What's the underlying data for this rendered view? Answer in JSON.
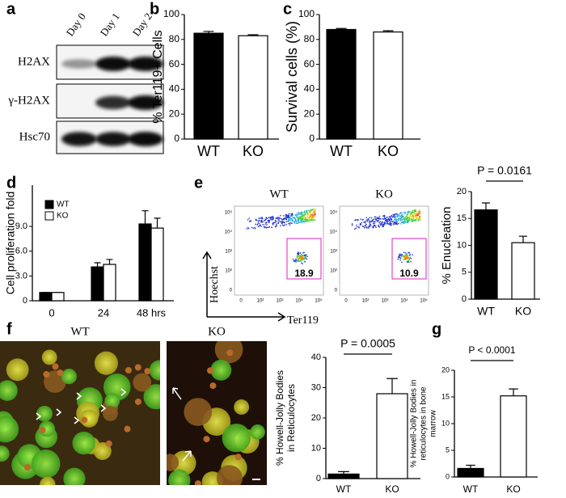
{
  "panel_labels": [
    "a",
    "b",
    "c",
    "d",
    "e",
    "f",
    "g"
  ],
  "blot": {
    "lanes": [
      "Day 0",
      "Day 1",
      "Day 2"
    ],
    "rows": [
      "H2AX",
      "γ-H2AX",
      "Hsc70"
    ]
  },
  "flow": {
    "plots": [
      {
        "label": "WT",
        "gate": 18.9
      },
      {
        "label": "KO",
        "gate": 10.9
      }
    ],
    "y_label": "Hoechst",
    "x_label": "Ter119",
    "x_ticks": [
      "0",
      "10²",
      "10³",
      "10⁴",
      "10⁵"
    ],
    "y_ticks": [
      "0",
      "10²",
      "10³",
      "10⁴",
      "10⁵"
    ]
  },
  "micrographs": {
    "labels": [
      "WT",
      "KO"
    ]
  },
  "chart_data": [
    {
      "type": "bar",
      "y_label": [
        "% Ter119+ Cells"
      ],
      "categories": [
        "WT",
        "KO"
      ],
      "values": [
        85,
        83
      ],
      "errors": [
        1.5,
        0.8
      ],
      "colors": [
        "#000000",
        "#ffffff"
      ],
      "ylim": [
        0,
        100
      ],
      "yticks": [
        0,
        20,
        40,
        60,
        80,
        100
      ]
    },
    {
      "type": "bar",
      "y_label": [
        "Survival cells (%)"
      ],
      "categories": [
        "WT",
        "KO"
      ],
      "values": [
        88,
        86
      ],
      "errors": [
        0.8,
        1.0
      ],
      "colors": [
        "#000000",
        "#ffffff"
      ],
      "ylim": [
        0,
        100
      ],
      "yticks": [
        0,
        20,
        40,
        60,
        80,
        100
      ]
    },
    {
      "type": "grouped_bar",
      "y_label": [
        "Cell proliferation fold"
      ],
      "categories": [
        "0",
        "24",
        "48 hrs"
      ],
      "series": [
        {
          "name": "WT",
          "color": "#000000",
          "values": [
            1.0,
            4.1,
            9.3
          ],
          "errors": [
            0,
            0.5,
            1.6
          ]
        },
        {
          "name": "KO",
          "color": "#ffffff",
          "values": [
            1.0,
            4.4,
            8.8
          ],
          "errors": [
            0,
            0.6,
            1.2
          ]
        }
      ],
      "legend": "upper left",
      "ylim": [
        0,
        14
      ],
      "yticks": [
        0,
        {
          "value": 3,
          "label": "3.0"
        },
        {
          "value": 6,
          "label": "6.0"
        },
        {
          "value": 9,
          "label": "9.0"
        }
      ]
    },
    {
      "type": "bar",
      "y_label": [
        "% Enucleation"
      ],
      "categories": [
        "WT",
        "KO"
      ],
      "values": [
        16.6,
        10.5
      ],
      "errors": [
        1.3,
        1.2
      ],
      "colors": [
        "#000000",
        "#ffffff"
      ],
      "ylim": [
        0,
        20
      ],
      "yticks": [
        0,
        5,
        10,
        15,
        20
      ],
      "annotation": "P = 0.0161"
    },
    {
      "type": "bar",
      "y_label": [
        "% Howell-Jolly Bodies",
        "in Reticulocytes"
      ],
      "categories": [
        "WT",
        "KO"
      ],
      "values": [
        1.5,
        28
      ],
      "errors": [
        0.8,
        5
      ],
      "colors": [
        "#000000",
        "#ffffff"
      ],
      "ylim": [
        0,
        40
      ],
      "yticks": [
        0,
        10,
        20,
        30,
        40
      ],
      "annotation": "P = 0.0005"
    },
    {
      "type": "bar",
      "y_label": [
        "% Howell-Jolly Bodies in",
        "reticulocytes in bone",
        "marrow"
      ],
      "categories": [
        "WT",
        "KO"
      ],
      "values": [
        1.6,
        15.2
      ],
      "errors": [
        0.6,
        1.3
      ],
      "colors": [
        "#000000",
        "#ffffff"
      ],
      "ylim": [
        0,
        20
      ],
      "yticks": [
        0,
        5,
        10,
        15,
        20
      ],
      "annotation": "P < 0.0001"
    }
  ]
}
